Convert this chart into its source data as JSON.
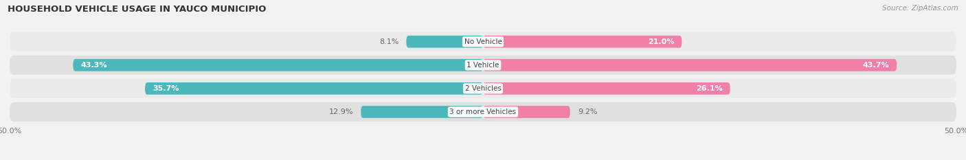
{
  "title": "HOUSEHOLD VEHICLE USAGE IN YAUCO MUNICIPIO",
  "source": "Source: ZipAtlas.com",
  "categories": [
    "No Vehicle",
    "1 Vehicle",
    "2 Vehicles",
    "3 or more Vehicles"
  ],
  "owner_values": [
    8.1,
    43.3,
    35.7,
    12.9
  ],
  "renter_values": [
    21.0,
    43.7,
    26.1,
    9.2
  ],
  "owner_color": "#4db8bc",
  "renter_color": "#f080a8",
  "xlim": [
    -50,
    50
  ],
  "background_color": "#f2f2f2",
  "row_color_light": "#e8e8e8",
  "row_color_dark": "#dedede",
  "title_fontsize": 9.5,
  "source_fontsize": 7.5,
  "label_fontsize": 8,
  "category_fontsize": 7.5,
  "bar_height": 0.52
}
